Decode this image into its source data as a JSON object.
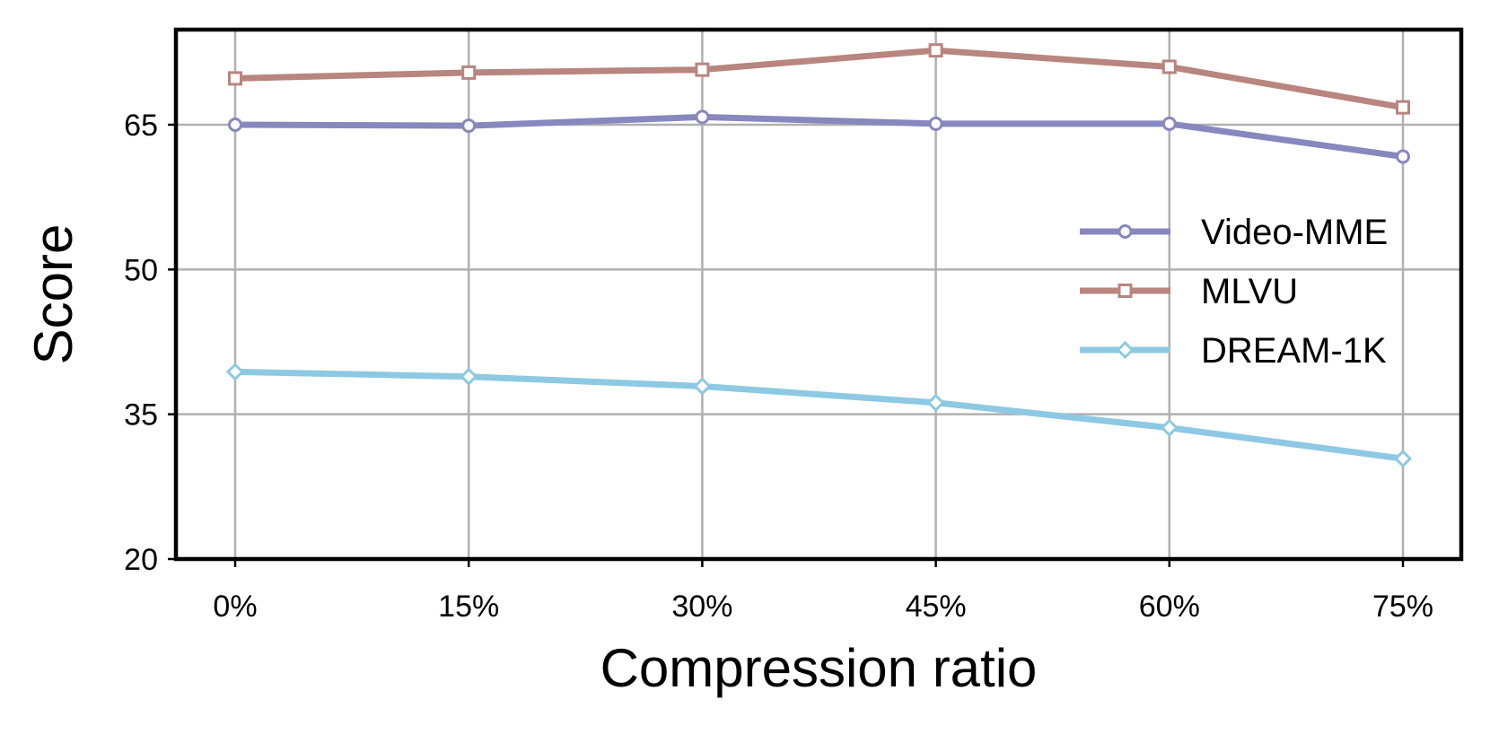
{
  "chart_data": {
    "type": "line",
    "title": "",
    "xlabel": "Compression ratio",
    "ylabel": "Score",
    "categories": [
      "0%",
      "15%",
      "30%",
      "45%",
      "60%",
      "75%"
    ],
    "ylim": [
      20,
      75
    ],
    "yticks": [
      20,
      35,
      50,
      65
    ],
    "grid": true,
    "legend_position": "center-right",
    "series": [
      {
        "name": "Video-MME",
        "marker": "circle",
        "color": "#8788be",
        "values": [
          65.0,
          64.9,
          65.8,
          65.1,
          65.1,
          61.7
        ]
      },
      {
        "name": "MLVU",
        "marker": "square",
        "color": "#b8857f",
        "values": [
          69.8,
          70.4,
          70.7,
          72.7,
          71.0,
          66.8
        ]
      },
      {
        "name": "DREAM-1K",
        "marker": "diamond",
        "color": "#8dc9e3",
        "values": [
          39.4,
          38.9,
          37.9,
          36.2,
          33.6,
          30.4
        ]
      }
    ]
  }
}
